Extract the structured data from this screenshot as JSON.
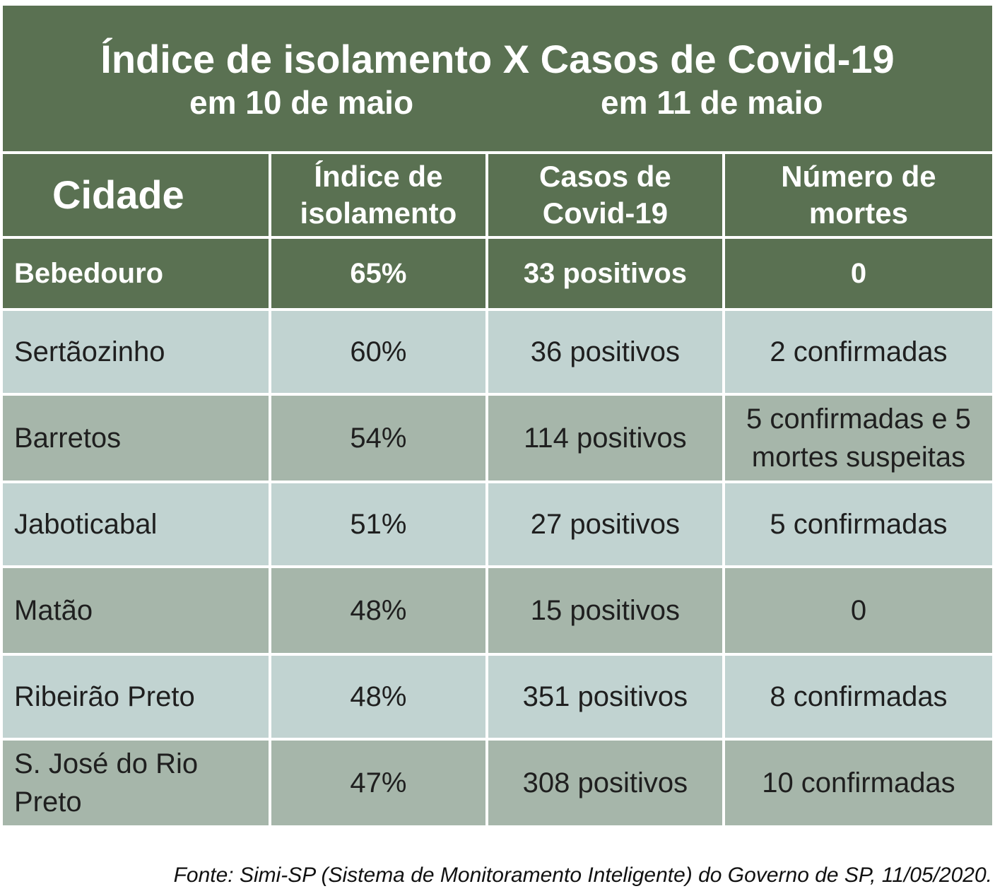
{
  "title": {
    "line1": "Índice de isolamento X Casos de Covid-19",
    "left_sub": "em 10 de maio",
    "right_sub": "em 11 de maio"
  },
  "chart_data": {
    "type": "table",
    "columns": [
      "Cidade",
      "Índice de isolamento",
      "Casos de Covid-19",
      "Número de mortes"
    ],
    "rows": [
      {
        "city": "Bebedouro",
        "isolation": "65%",
        "cases": "33 positivos",
        "deaths": "0"
      },
      {
        "city": "Sertãozinho",
        "isolation": "60%",
        "cases": "36 positivos",
        "deaths": "2 confirmadas"
      },
      {
        "city": "Barretos",
        "isolation": "54%",
        "cases": "114 positivos",
        "deaths": "5 confirmadas e 5 mortes suspeitas"
      },
      {
        "city": "Jaboticabal",
        "isolation": "51%",
        "cases": "27 positivos",
        "deaths": "5 confirmadas"
      },
      {
        "city": "Matão",
        "isolation": "48%",
        "cases": "15 positivos",
        "deaths": "0"
      },
      {
        "city": "Ribeirão Preto",
        "isolation": "48%",
        "cases": "351 positivos",
        "deaths": "8 confirmadas"
      },
      {
        "city": "S. José do Rio Preto",
        "isolation": "47%",
        "cases": "308 positivos",
        "deaths": "10 confirmadas"
      }
    ]
  },
  "source": "Fonte: Simi-SP (Sistema de Monitoramento Inteligente) do Governo de SP, 11/05/2020.",
  "colors": {
    "header_green": "#5a7152",
    "row_light": "#c1d3d1",
    "row_dark": "#a6b6aa"
  }
}
